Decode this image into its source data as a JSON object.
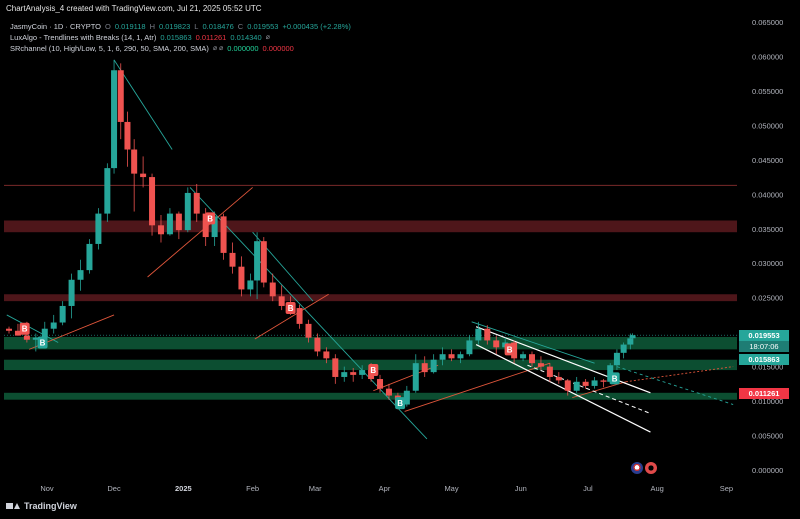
{
  "header": {
    "title_line": "ChartAnalysis_4 created with TradingView.com, Jul 21, 2025 05:52 UTC"
  },
  "legend": {
    "main": {
      "name": "JasmyCoin · 1D · CRYPTO",
      "open_label": "O",
      "open": "0.019118",
      "high_label": "H",
      "high": "0.019823",
      "low_label": "L",
      "low": "0.018476",
      "close_label": "C",
      "close": "0.019553",
      "change": "+0.000435 (+2.28%)"
    },
    "luxalgo": {
      "name": "LuxAlgo - Trendlines with Breaks (14, 1, Atr)",
      "v1": "0.015863",
      "v2": "0.011261",
      "v3": "0.014340",
      "icon": "eye-off-icon"
    },
    "srchannel": {
      "name": "SRchannel (10, High/Low, 5, 1, 6, 290, 50, SMA, 200, SMA)",
      "icons": "⌀ ⌀",
      "v1": "0.000000",
      "v2": "0.000000"
    }
  },
  "price_tags": {
    "last_price": "0.019553",
    "countdown": "18:07:06",
    "level_1": "0.015863",
    "level_2": "0.011261"
  },
  "branding": {
    "logo": "tradingview-logo-icon",
    "text": "TradingView"
  },
  "colors": {
    "bull": "#26a69a",
    "bear": "#ef5350",
    "resistance_zone": "#5c1a1f",
    "support_zone": "#0e5c3a",
    "trendline": "#26a69a",
    "orange_line": "#e0563b",
    "white_channel": "#ffffff"
  },
  "chart_data": {
    "type": "candlestick",
    "title": "JasmyCoin · 1D · CRYPTO",
    "y_ticks": [
      "0.000000",
      "0.005000",
      "0.010000",
      "0.015000",
      "0.020000",
      "0.025000",
      "0.030000",
      "0.035000",
      "0.040000",
      "0.045000",
      "0.050000",
      "0.055000",
      "0.060000",
      "0.065000"
    ],
    "x_ticks": [
      "Nov",
      "Dec",
      "2025",
      "Feb",
      "Mar",
      "Apr",
      "May",
      "Jun",
      "Jul",
      "Aug",
      "Sep"
    ],
    "ylim": [
      0,
      0.065
    ],
    "scale": "linear",
    "resistance_zones": [
      [
        0.0345,
        0.0362
      ],
      [
        0.0245,
        0.0255
      ]
    ],
    "resistance_line": 0.0413,
    "support_zones": [
      [
        0.0175,
        0.0193
      ],
      [
        0.0145,
        0.016
      ],
      [
        0.0102,
        0.0112
      ]
    ],
    "last_price": 0.019553,
    "markers": [
      {
        "label": "B",
        "color": "bear",
        "date": "2024-10-22",
        "price": 0.0205
      },
      {
        "label": "B",
        "color": "bull",
        "date": "2024-10-30",
        "price": 0.0185
      },
      {
        "label": "B",
        "color": "bear",
        "date": "2025-01-13",
        "price": 0.0365
      },
      {
        "label": "B",
        "color": "bear",
        "date": "2025-02-18",
        "price": 0.0235
      },
      {
        "label": "B",
        "color": "bear",
        "date": "2025-03-27",
        "price": 0.0145
      },
      {
        "label": "B",
        "color": "bull",
        "date": "2025-04-08",
        "price": 0.0097
      },
      {
        "label": "B",
        "color": "bear",
        "date": "2025-05-27",
        "price": 0.0175
      },
      {
        "label": "B",
        "color": "bull",
        "date": "2025-07-13",
        "price": 0.0133
      }
    ],
    "series": [
      {
        "name": "JasmyCoin",
        "points": [
          [
            "2024-10-15",
            0.0205,
            0.0208,
            0.0198,
            0.0202
          ],
          [
            "2024-10-19",
            0.0202,
            0.0212,
            0.0195,
            0.0195
          ],
          [
            "2024-10-23",
            0.0195,
            0.0215,
            0.0185,
            0.0189
          ],
          [
            "2024-10-27",
            0.0189,
            0.0198,
            0.0172,
            0.0192
          ],
          [
            "2024-10-31",
            0.0192,
            0.0215,
            0.0185,
            0.0205
          ],
          [
            "2024-11-04",
            0.0205,
            0.0225,
            0.0198,
            0.0214
          ],
          [
            "2024-11-08",
            0.0214,
            0.0245,
            0.021,
            0.0238
          ],
          [
            "2024-11-12",
            0.0238,
            0.0285,
            0.022,
            0.0276
          ],
          [
            "2024-11-16",
            0.0276,
            0.0305,
            0.026,
            0.029
          ],
          [
            "2024-11-20",
            0.029,
            0.0335,
            0.0285,
            0.0328
          ],
          [
            "2024-11-24",
            0.0328,
            0.038,
            0.032,
            0.0372
          ],
          [
            "2024-11-28",
            0.0372,
            0.0445,
            0.036,
            0.0438
          ],
          [
            "2024-12-01",
            0.0438,
            0.0595,
            0.043,
            0.058
          ],
          [
            "2024-12-04",
            0.058,
            0.059,
            0.048,
            0.0505
          ],
          [
            "2024-12-07",
            0.0505,
            0.052,
            0.044,
            0.0465
          ],
          [
            "2024-12-10",
            0.0465,
            0.048,
            0.0375,
            0.043
          ],
          [
            "2024-12-14",
            0.043,
            0.0455,
            0.041,
            0.0425
          ],
          [
            "2024-12-18",
            0.0425,
            0.043,
            0.034,
            0.0355
          ],
          [
            "2024-12-22",
            0.0355,
            0.037,
            0.033,
            0.0342
          ],
          [
            "2024-12-26",
            0.0342,
            0.038,
            0.034,
            0.0372
          ],
          [
            "2024-12-30",
            0.0372,
            0.0375,
            0.0335,
            0.0348
          ],
          [
            "2025-01-03",
            0.0348,
            0.041,
            0.0345,
            0.0402
          ],
          [
            "2025-01-07",
            0.0402,
            0.0415,
            0.036,
            0.0372
          ],
          [
            "2025-01-11",
            0.0372,
            0.038,
            0.0325,
            0.0338
          ],
          [
            "2025-01-15",
            0.0338,
            0.0375,
            0.0325,
            0.0368
          ],
          [
            "2025-01-19",
            0.0368,
            0.0372,
            0.0305,
            0.0315
          ],
          [
            "2025-01-23",
            0.0315,
            0.033,
            0.0285,
            0.0295
          ],
          [
            "2025-01-27",
            0.0295,
            0.031,
            0.0252,
            0.0262
          ],
          [
            "2025-01-31",
            0.0262,
            0.0285,
            0.0252,
            0.0275
          ],
          [
            "2025-02-03",
            0.0275,
            0.0345,
            0.0248,
            0.0332
          ],
          [
            "2025-02-06",
            0.0332,
            0.0338,
            0.0265,
            0.0272
          ],
          [
            "2025-02-10",
            0.0272,
            0.0285,
            0.0245,
            0.0252
          ],
          [
            "2025-02-14",
            0.0252,
            0.0268,
            0.0232,
            0.0238
          ],
          [
            "2025-02-18",
            0.0238,
            0.0252,
            0.0225,
            0.0235
          ],
          [
            "2025-02-22",
            0.0235,
            0.024,
            0.0205,
            0.0212
          ],
          [
            "2025-02-26",
            0.0212,
            0.0218,
            0.0185,
            0.0192
          ],
          [
            "2025-03-02",
            0.0192,
            0.0198,
            0.0165,
            0.0172
          ],
          [
            "2025-03-06",
            0.0172,
            0.0178,
            0.0155,
            0.0162
          ],
          [
            "2025-03-10",
            0.0162,
            0.0168,
            0.0125,
            0.0135
          ],
          [
            "2025-03-14",
            0.0135,
            0.015,
            0.0128,
            0.0142
          ],
          [
            "2025-03-18",
            0.0142,
            0.0148,
            0.0128,
            0.0138
          ],
          [
            "2025-03-22",
            0.0138,
            0.0152,
            0.0132,
            0.0145
          ],
          [
            "2025-03-26",
            0.0145,
            0.0155,
            0.0128,
            0.0132
          ],
          [
            "2025-03-30",
            0.0132,
            0.0138,
            0.0112,
            0.0118
          ],
          [
            "2025-04-03",
            0.0118,
            0.0125,
            0.0102,
            0.0108
          ],
          [
            "2025-04-07",
            0.0108,
            0.0112,
            0.0088,
            0.0095
          ],
          [
            "2025-04-11",
            0.0095,
            0.0122,
            0.0092,
            0.0115
          ],
          [
            "2025-04-15",
            0.0115,
            0.0168,
            0.0112,
            0.0155
          ],
          [
            "2025-04-19",
            0.0155,
            0.0165,
            0.0135,
            0.0142
          ],
          [
            "2025-04-23",
            0.0142,
            0.0168,
            0.014,
            0.016
          ],
          [
            "2025-04-27",
            0.016,
            0.0178,
            0.0152,
            0.0168
          ],
          [
            "2025-05-01",
            0.0168,
            0.0175,
            0.0158,
            0.0162
          ],
          [
            "2025-05-05",
            0.0162,
            0.0172,
            0.0155,
            0.0168
          ],
          [
            "2025-05-09",
            0.0168,
            0.0195,
            0.0165,
            0.0188
          ],
          [
            "2025-05-13",
            0.0188,
            0.0215,
            0.0182,
            0.0205
          ],
          [
            "2025-05-17",
            0.0205,
            0.021,
            0.0182,
            0.0188
          ],
          [
            "2025-05-21",
            0.0188,
            0.0195,
            0.0168,
            0.0178
          ],
          [
            "2025-05-25",
            0.0178,
            0.0192,
            0.017,
            0.0185
          ],
          [
            "2025-05-29",
            0.0185,
            0.0188,
            0.0155,
            0.0162
          ],
          [
            "2025-06-02",
            0.0162,
            0.0172,
            0.0158,
            0.0168
          ],
          [
            "2025-06-06",
            0.0168,
            0.0172,
            0.015,
            0.0155
          ],
          [
            "2025-06-10",
            0.0155,
            0.0165,
            0.0145,
            0.015
          ],
          [
            "2025-06-14",
            0.015,
            0.0155,
            0.0128,
            0.0135
          ],
          [
            "2025-06-18",
            0.0135,
            0.0142,
            0.0125,
            0.013
          ],
          [
            "2025-06-22",
            0.013,
            0.0132,
            0.0108,
            0.0115
          ],
          [
            "2025-06-26",
            0.0115,
            0.0135,
            0.0112,
            0.0128
          ],
          [
            "2025-06-30",
            0.0128,
            0.0132,
            0.0118,
            0.0122
          ],
          [
            "2025-07-04",
            0.0122,
            0.0135,
            0.0118,
            0.013
          ],
          [
            "2025-07-08",
            0.013,
            0.0132,
            0.012,
            0.0128
          ],
          [
            "2025-07-11",
            0.0128,
            0.0155,
            0.0125,
            0.0152
          ],
          [
            "2025-07-14",
            0.0152,
            0.0175,
            0.0145,
            0.017
          ],
          [
            "2025-07-17",
            0.017,
            0.0185,
            0.0162,
            0.0182
          ],
          [
            "2025-07-20",
            0.0182,
            0.0198,
            0.0175,
            0.0191
          ],
          [
            "2025-07-21",
            0.019118,
            0.019823,
            0.018476,
            0.019553
          ]
        ]
      }
    ],
    "trendlines": [
      {
        "style": "teal",
        "from": [
          "2024-10-14",
          0.0225
        ],
        "to": [
          "2024-11-06",
          0.0185
        ]
      },
      {
        "style": "teal",
        "from": [
          "2024-12-01",
          0.0595
        ],
        "to": [
          "2024-12-27",
          0.0465
        ]
      },
      {
        "style": "teal",
        "from": [
          "2025-01-04",
          0.041
        ],
        "to": [
          "2025-04-20",
          0.0045
        ]
      },
      {
        "style": "teal",
        "from": [
          "2025-02-01",
          0.0345
        ],
        "to": [
          "2025-02-28",
          0.0245
        ]
      },
      {
        "style": "teal",
        "from": [
          "2025-05-10",
          0.0215
        ],
        "to": [
          "2025-07-04",
          0.0155
        ]
      },
      {
        "style": "orange",
        "from": [
          "2024-10-24",
          0.0175
        ],
        "to": [
          "2024-12-01",
          0.0225
        ]
      },
      {
        "style": "orange",
        "from": [
          "2024-12-16",
          0.028
        ],
        "to": [
          "2025-02-01",
          0.041
        ]
      },
      {
        "style": "orange",
        "from": [
          "2025-02-02",
          0.019
        ],
        "to": [
          "2025-03-07",
          0.0255
        ]
      },
      {
        "style": "orange",
        "from": [
          "2025-03-27",
          0.0115
        ],
        "to": [
          "2025-04-25",
          0.0152
        ]
      },
      {
        "style": "orange",
        "from": [
          "2025-04-10",
          0.0085
        ],
        "to": [
          "2025-06-14",
          0.0155
        ]
      },
      {
        "style": "orange",
        "from": [
          "2025-06-24",
          0.0105
        ],
        "to": [
          "2025-07-18",
          0.0128
        ]
      },
      {
        "style": "orange-dashed",
        "from": [
          "2025-07-18",
          0.0128
        ],
        "to": [
          "2025-09-04",
          0.015
        ]
      },
      {
        "style": "teal-dashed",
        "from": [
          "2025-07-14",
          0.015
        ],
        "to": [
          "2025-09-04",
          0.0095
        ]
      },
      {
        "style": "white",
        "from": [
          "2025-05-12",
          0.0208
        ],
        "to": [
          "2025-07-29",
          0.0112
        ]
      },
      {
        "style": "white",
        "from": [
          "2025-05-12",
          0.0182
        ],
        "to": [
          "2025-07-29",
          0.0055
        ]
      },
      {
        "style": "white-dashed",
        "from": [
          "2025-06-04",
          0.0152
        ],
        "to": [
          "2025-07-29",
          0.0082
        ]
      }
    ]
  }
}
